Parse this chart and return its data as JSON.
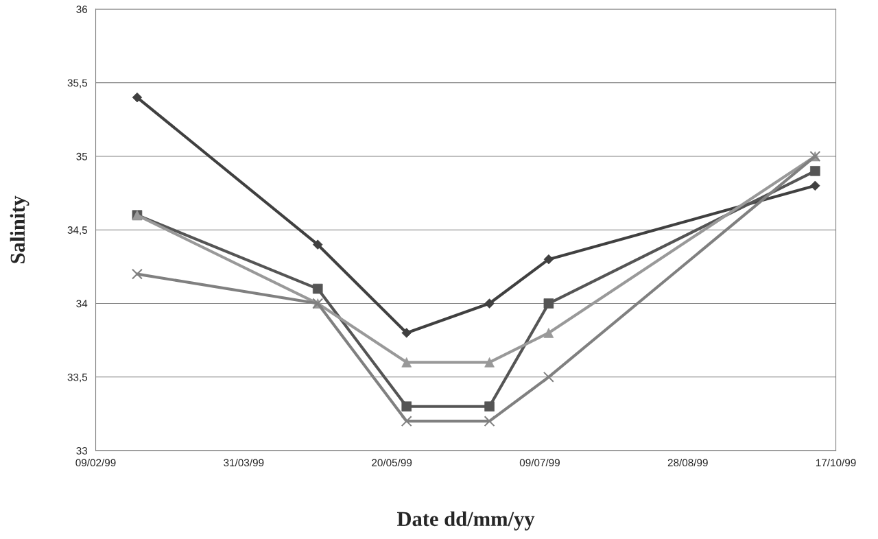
{
  "chart_data": {
    "type": "line",
    "xlabel": "Date dd/mm/yy",
    "ylabel": "Salinity",
    "x": [
      "1999-02-23",
      "1999-04-25",
      "1999-05-25",
      "1999-06-22",
      "1999-07-12",
      "1999-10-10"
    ],
    "series": [
      {
        "color": "#404040",
        "marker": "diamond",
        "values": [
          35.4,
          34.4,
          33.8,
          34.0,
          34.3,
          34.8
        ]
      },
      {
        "color": "#555555",
        "marker": "square",
        "values": [
          34.6,
          34.1,
          33.3,
          33.3,
          34.0,
          34.9
        ]
      },
      {
        "color": "#999999",
        "marker": "triangle",
        "values": [
          34.6,
          34.0,
          33.6,
          33.6,
          33.8,
          35.0
        ]
      },
      {
        "color": "#808080",
        "marker": "cross",
        "values": [
          34.2,
          34.0,
          33.2,
          33.2,
          33.5,
          35.0
        ]
      }
    ],
    "xlim": [
      "1999-02-09",
      "1999-10-17"
    ],
    "xticks": [
      {
        "value": "1999-02-09",
        "label": "09/02/99"
      },
      {
        "value": "1999-03-31",
        "label": "31/03/99"
      },
      {
        "value": "1999-05-20",
        "label": "20/05/99"
      },
      {
        "value": "1999-07-09",
        "label": "09/07/99"
      },
      {
        "value": "1999-08-28",
        "label": "28/08/99"
      },
      {
        "value": "1999-10-17",
        "label": "17/10/99"
      }
    ],
    "ylim": [
      33,
      36
    ],
    "yticks": [
      33,
      {
        "value": 33.5,
        "label": "33,5"
      },
      34,
      {
        "value": 34.5,
        "label": "34,5"
      },
      35,
      {
        "value": 35.5,
        "label": "35,5"
      },
      36
    ],
    "grid": "y"
  }
}
